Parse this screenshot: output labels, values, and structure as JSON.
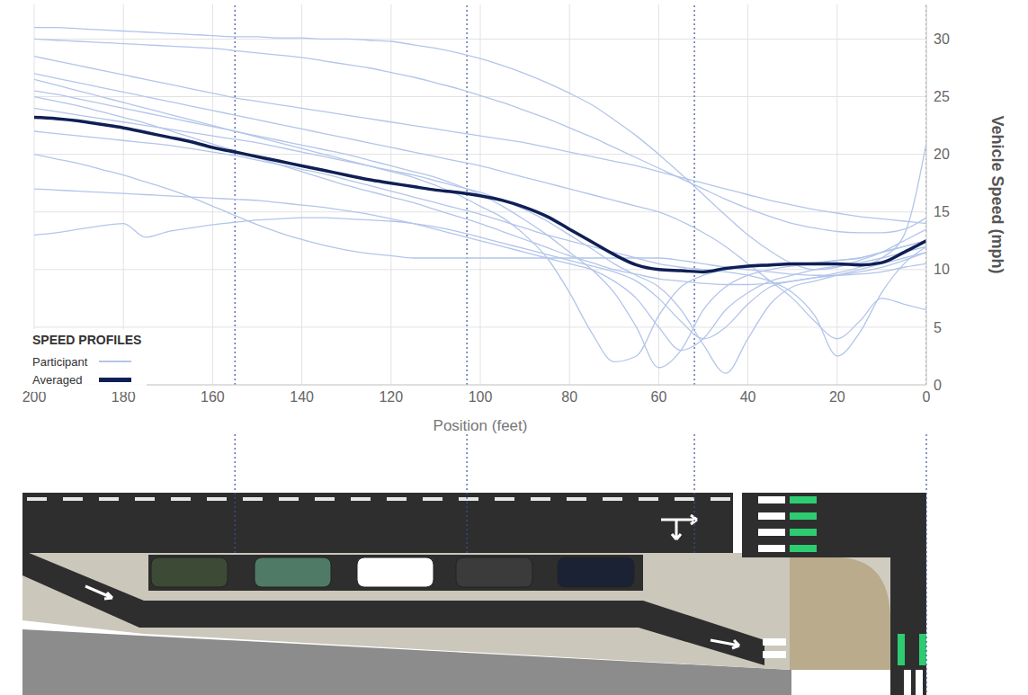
{
  "chart_data": {
    "type": "line",
    "legend_title": "SPEED PROFILES",
    "x_label": "Position (feet)",
    "y_label": "Vehicle Speed (mph)",
    "x": [
      200,
      195,
      190,
      185,
      180,
      175,
      170,
      165,
      160,
      155,
      150,
      145,
      140,
      135,
      130,
      125,
      120,
      115,
      110,
      105,
      100,
      95,
      90,
      85,
      80,
      75,
      70,
      65,
      60,
      55,
      50,
      45,
      40,
      35,
      30,
      25,
      20,
      15,
      10,
      5,
      0
    ],
    "series": [
      {
        "name": "Participant",
        "color": "#b3c5ea",
        "values": [
          31,
          31,
          30.9,
          30.8,
          30.7,
          30.6,
          30.5,
          30.4,
          30.3,
          30.2,
          30.2,
          30.1,
          30.1,
          30.0,
          30.0,
          29.9,
          29.8,
          29.5,
          29.2,
          28.8,
          28.3,
          27.7,
          27.0,
          26.2,
          25.3,
          24.3,
          23.0,
          21.6,
          20.0,
          18.3,
          16.5,
          14.7,
          13.0,
          11.6,
          10.5,
          10.0,
          10.2,
          10.8,
          11.5,
          12.5,
          13.5
        ]
      },
      {
        "name": "Participant",
        "color": "#b3c5ea",
        "values": [
          28.5,
          28.1,
          27.7,
          27.3,
          26.9,
          26.5,
          26.1,
          25.7,
          25.3,
          24.9,
          24.6,
          24.3,
          24.0,
          23.7,
          23.4,
          23.1,
          22.8,
          22.5,
          22.2,
          21.9,
          21.6,
          21.3,
          21.0,
          20.6,
          20.2,
          19.8,
          19.4,
          19.0,
          18.5,
          18.0,
          17.5,
          17.0,
          16.5,
          16.0,
          15.6,
          15.2,
          14.9,
          14.6,
          14.4,
          14.2,
          14.0
        ]
      },
      {
        "name": "Participant",
        "color": "#b3c5ea",
        "values": [
          26.5,
          26.0,
          25.5,
          25.0,
          24.5,
          24.0,
          23.5,
          23.0,
          22.5,
          22.0,
          21.5,
          21.0,
          20.5,
          20.0,
          19.5,
          19.0,
          18.5,
          18.0,
          17.3,
          16.5,
          15.5,
          14.5,
          13.0,
          11.0,
          8.0,
          4.5,
          2.0,
          2.5,
          6.0,
          8.5,
          9.5,
          10.0,
          10.2,
          10.3,
          10.5,
          10.6,
          10.8,
          11.0,
          11.5,
          12.0,
          12.5
        ]
      },
      {
        "name": "Participant",
        "color": "#b3c5ea",
        "values": [
          25.5,
          25.2,
          24.8,
          24.4,
          24.0,
          23.6,
          23.2,
          22.8,
          22.4,
          22.0,
          21.6,
          21.2,
          20.8,
          20.4,
          20.0,
          19.5,
          19.0,
          18.5,
          18.0,
          17.3,
          16.5,
          15.5,
          14.3,
          13.0,
          11.5,
          10.0,
          8.0,
          5.0,
          1.5,
          3.0,
          6.5,
          8.5,
          9.5,
          10.0,
          10.3,
          10.5,
          10.8,
          11.0,
          11.5,
          12.0,
          12.5
        ]
      },
      {
        "name": "Participant",
        "color": "#b3c5ea",
        "values": [
          24.0,
          23.7,
          23.4,
          23.1,
          22.8,
          22.5,
          22.2,
          21.9,
          21.6,
          21.3,
          21.0,
          20.6,
          20.2,
          19.8,
          19.4,
          19.0,
          18.6,
          18.2,
          17.7,
          17.2,
          16.7,
          16.0,
          15.2,
          14.2,
          13.0,
          11.8,
          10.5,
          9.5,
          8.5,
          6.5,
          3.5,
          1.0,
          4.0,
          7.0,
          8.5,
          9.0,
          9.5,
          10.0,
          10.5,
          11.0,
          11.5
        ]
      },
      {
        "name": "Participant",
        "color": "#b3c5ea",
        "values": [
          20.0,
          19.6,
          19.2,
          18.7,
          18.2,
          17.6,
          17.0,
          16.3,
          15.5,
          14.7,
          13.9,
          13.2,
          12.6,
          12.1,
          11.7,
          11.4,
          11.2,
          11.0,
          11.0,
          11.0,
          11.0,
          11.0,
          11.0,
          11.0,
          11.0,
          11.0,
          11.0,
          11.0,
          11.0,
          10.8,
          10.5,
          10.2,
          10.0,
          9.8,
          9.6,
          9.5,
          9.5,
          9.6,
          9.8,
          10.2,
          10.5
        ]
      },
      {
        "name": "Participant",
        "color": "#b3c5ea",
        "values": [
          13.0,
          13.2,
          13.5,
          13.8,
          14.0,
          12.8,
          13.3,
          13.6,
          13.9,
          14.1,
          14.3,
          14.4,
          14.5,
          14.5,
          14.4,
          14.3,
          14.2,
          14.0,
          13.7,
          13.3,
          12.8,
          12.3,
          11.8,
          11.3,
          10.8,
          10.3,
          9.8,
          9.0,
          7.5,
          5.5,
          4.0,
          5.0,
          7.0,
          8.5,
          9.0,
          9.3,
          9.5,
          9.8,
          10.2,
          10.8,
          11.5
        ]
      },
      {
        "name": "Participant",
        "color": "#b3c5ea",
        "values": [
          22.0,
          21.8,
          21.6,
          21.4,
          21.2,
          21.0,
          20.8,
          20.5,
          20.2,
          19.9,
          19.5,
          19.1,
          18.7,
          18.3,
          17.8,
          17.3,
          16.8,
          16.3,
          15.8,
          15.3,
          14.8,
          14.2,
          13.6,
          13.0,
          12.5,
          12.0,
          11.5,
          11.0,
          10.5,
          10.2,
          10.0,
          9.8,
          9.5,
          9.0,
          8.0,
          6.0,
          2.5,
          4.5,
          8.0,
          10.5,
          12.0
        ]
      },
      {
        "name": "Participant",
        "color": "#b3c5ea",
        "values": [
          27.0,
          26.6,
          26.2,
          25.8,
          25.4,
          25.0,
          24.6,
          24.2,
          23.8,
          23.4,
          23.0,
          22.6,
          22.2,
          21.8,
          21.4,
          21.0,
          20.6,
          20.2,
          19.8,
          19.4,
          19.0,
          18.5,
          18.0,
          17.5,
          17.0,
          16.5,
          16.0,
          15.5,
          15.0,
          14.2,
          13.2,
          12.0,
          10.5,
          9.0,
          7.5,
          5.5,
          4.0,
          5.5,
          7.5,
          7.0,
          6.5
        ]
      },
      {
        "name": "Participant",
        "color": "#b3c5ea",
        "values": [
          30.0,
          29.9,
          29.8,
          29.7,
          29.6,
          29.5,
          29.4,
          29.3,
          29.2,
          29.0,
          28.8,
          28.6,
          28.4,
          28.1,
          27.8,
          27.5,
          27.1,
          26.7,
          26.2,
          25.7,
          25.1,
          24.5,
          23.8,
          23.1,
          22.3,
          21.5,
          20.6,
          19.7,
          18.8,
          17.9,
          17.0,
          16.1,
          15.3,
          14.6,
          14.0,
          13.6,
          13.3,
          13.2,
          13.2,
          13.5,
          14.5
        ]
      },
      {
        "name": "Participant",
        "color": "#b3c5ea",
        "values": [
          17.0,
          16.9,
          16.8,
          16.7,
          16.6,
          16.5,
          16.4,
          16.3,
          16.2,
          16.1,
          16.0,
          15.8,
          15.6,
          15.4,
          15.1,
          14.8,
          14.4,
          14.0,
          13.5,
          13.0,
          12.5,
          12.0,
          11.5,
          11.0,
          10.5,
          10.0,
          9.0,
          7.5,
          5.0,
          3.0,
          4.0,
          6.5,
          8.0,
          9.0,
          9.5,
          10.0,
          10.3,
          10.6,
          11.0,
          11.5,
          12.0
        ]
      },
      {
        "name": "Participant",
        "color": "#b3c5ea",
        "values": [
          25.0,
          24.6,
          24.2,
          23.7,
          23.2,
          22.7,
          22.1,
          21.5,
          20.9,
          20.3,
          19.7,
          19.1,
          18.5,
          17.9,
          17.3,
          16.8,
          16.3,
          15.8,
          15.2,
          14.6,
          14.0,
          13.3,
          12.6,
          11.9,
          11.2,
          10.6,
          10.0,
          9.6,
          9.2,
          9.0,
          8.8,
          8.7,
          8.7,
          8.8,
          9.0,
          9.3,
          9.7,
          10.2,
          11.0,
          13.0,
          21.0
        ]
      },
      {
        "name": "Averaged",
        "color": "#0f1f55",
        "values": [
          23.2,
          23.1,
          22.9,
          22.6,
          22.3,
          21.9,
          21.5,
          21.1,
          20.6,
          20.2,
          19.8,
          19.4,
          19.0,
          18.6,
          18.2,
          17.8,
          17.5,
          17.2,
          16.9,
          16.7,
          16.4,
          16.0,
          15.4,
          14.6,
          13.5,
          12.4,
          11.3,
          10.4,
          10.0,
          9.9,
          9.8,
          10.1,
          10.3,
          10.4,
          10.5,
          10.5,
          10.5,
          10.4,
          10.6,
          11.5,
          12.5
        ]
      }
    ],
    "xlim": [
      200,
      0
    ],
    "xticks": [
      200,
      180,
      160,
      140,
      120,
      100,
      80,
      60,
      40,
      20,
      0
    ],
    "ylim": [
      0,
      33
    ],
    "yticks": [
      0,
      5,
      10,
      15,
      20,
      25,
      30
    ],
    "vlines": [
      155,
      103,
      52,
      0
    ],
    "grid": true,
    "legend": "lower left"
  }
}
